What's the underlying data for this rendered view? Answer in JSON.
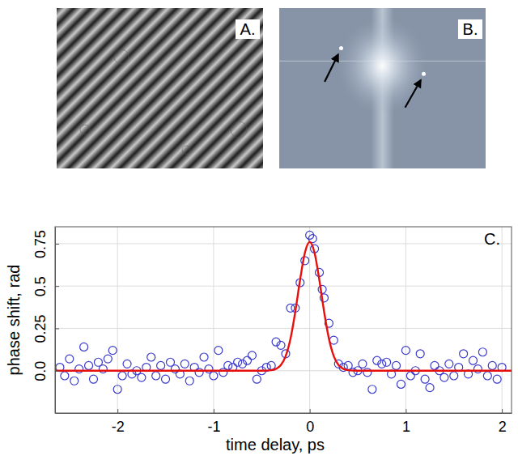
{
  "chart_data": [
    {
      "type": "image",
      "title": "A."
    },
    {
      "type": "image",
      "title": "B."
    },
    {
      "type": "scatter",
      "title": "C.",
      "x_label": "time delay, ps",
      "y_label": "phase shift, rad",
      "xlim": [
        -2.65,
        2.1
      ],
      "ylim": [
        -0.25,
        0.85
      ],
      "xticks": [
        -2,
        -1,
        0,
        1,
        2
      ],
      "yticks": [
        {
          "value": 0,
          "label": "0.0"
        },
        0.25,
        0.5,
        0.75
      ],
      "grid": true,
      "series": [
        {
          "type": "scatter",
          "color": "#3a3acc",
          "marker": "circle",
          "x": [
            -2.6,
            -2.55,
            -2.5,
            -2.45,
            -2.4,
            -2.35,
            -2.3,
            -2.25,
            -2.2,
            -2.15,
            -2.1,
            -2.05,
            -2.0,
            -1.95,
            -1.9,
            -1.85,
            -1.8,
            -1.75,
            -1.7,
            -1.65,
            -1.6,
            -1.55,
            -1.5,
            -1.45,
            -1.4,
            -1.35,
            -1.3,
            -1.25,
            -1.2,
            -1.15,
            -1.1,
            -1.05,
            -1.0,
            -0.95,
            -0.9,
            -0.85,
            -0.8,
            -0.75,
            -0.7,
            -0.65,
            -0.6,
            -0.55,
            -0.5,
            -0.45,
            -0.4,
            -0.35,
            -0.3,
            -0.25,
            -0.2,
            -0.15,
            -0.1,
            -0.05,
            0.0,
            0.03,
            0.05,
            0.1,
            0.13,
            0.15,
            0.2,
            0.25,
            0.3,
            0.35,
            0.4,
            0.45,
            0.5,
            0.55,
            0.6,
            0.65,
            0.7,
            0.75,
            0.8,
            0.85,
            0.9,
            0.95,
            1.0,
            1.05,
            1.1,
            1.15,
            1.2,
            1.25,
            1.3,
            1.35,
            1.4,
            1.45,
            1.5,
            1.55,
            1.6,
            1.65,
            1.7,
            1.75,
            1.8,
            1.85,
            1.9,
            1.95,
            2.0
          ],
          "values": [
            0.02,
            -0.03,
            0.07,
            -0.06,
            0.01,
            0.14,
            0.03,
            -0.05,
            0.05,
            0.01,
            0.07,
            0.12,
            -0.11,
            -0.03,
            0.04,
            -0.02,
            0.0,
            -0.04,
            0.02,
            0.08,
            -0.03,
            0.03,
            -0.05,
            0.05,
            0.01,
            -0.02,
            0.04,
            -0.06,
            0.02,
            -0.01,
            0.08,
            0.01,
            -0.03,
            0.12,
            -0.01,
            0.03,
            0.02,
            0.05,
            0.04,
            0.06,
            0.09,
            -0.05,
            0.0,
            0.02,
            0.03,
            0.17,
            0.15,
            0.1,
            0.37,
            0.37,
            0.52,
            0.65,
            0.8,
            0.78,
            0.72,
            0.58,
            0.48,
            0.43,
            0.28,
            0.18,
            0.04,
            0.02,
            0.03,
            -0.01,
            0.0,
            0.04,
            -0.01,
            -0.11,
            0.06,
            0.04,
            0.05,
            -0.02,
            0.03,
            -0.08,
            0.12,
            -0.03,
            0.0,
            0.1,
            -0.05,
            -0.1,
            0.03,
            0.0,
            -0.04,
            0.04,
            -0.03,
            0.02,
            0.1,
            -0.02,
            0.06,
            0.01,
            0.11,
            -0.03,
            0.03,
            -0.05,
            0.02
          ]
        },
        {
          "type": "line",
          "color": "#e8100c",
          "line_style": "solid",
          "x": [
            -2.65,
            -0.5,
            -0.4,
            -0.35,
            -0.3,
            -0.25,
            -0.2,
            -0.15,
            -0.1,
            -0.05,
            0.0,
            0.05,
            0.1,
            0.15,
            0.2,
            0.25,
            0.3,
            0.35,
            0.4,
            0.5,
            2.1
          ],
          "values": [
            0.0,
            0.0,
            0.003,
            0.011,
            0.033,
            0.087,
            0.189,
            0.348,
            0.537,
            0.697,
            0.76,
            0.697,
            0.537,
            0.348,
            0.189,
            0.087,
            0.033,
            0.011,
            0.003,
            0.0,
            0.0
          ]
        }
      ]
    }
  ]
}
